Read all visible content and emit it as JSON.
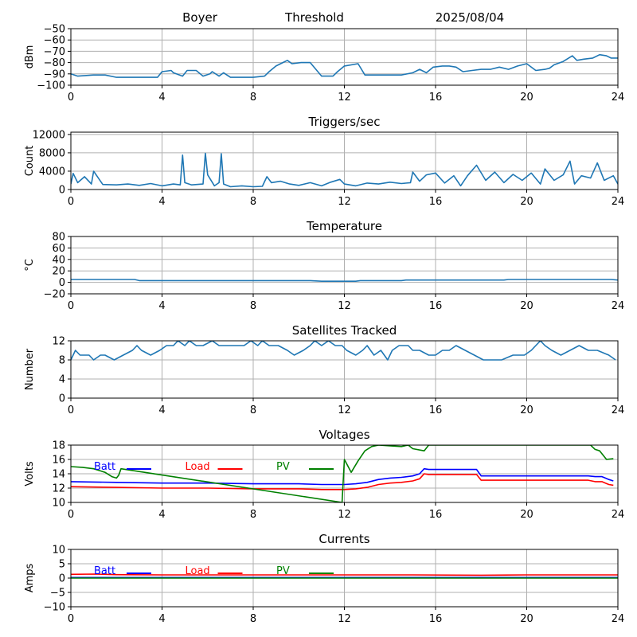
{
  "header": {
    "station": "Boyer",
    "mode": "Threshold",
    "date": "2025/08/04"
  },
  "chart_data": [
    {
      "type": "line",
      "title": "",
      "ylabel": "dBm",
      "xlim": [
        0,
        24
      ],
      "ylim": [
        -100,
        -50
      ],
      "xticks": [
        0,
        4,
        8,
        12,
        16,
        20,
        24
      ],
      "yticks": [
        -100,
        -90,
        -80,
        -70,
        -60,
        -50
      ],
      "grid": true,
      "series": [
        {
          "color": "#1f77b4",
          "x": [
            0,
            0.3,
            1,
            1.5,
            2,
            3,
            3.8,
            4,
            4.4,
            4.5,
            4.9,
            5.1,
            5.5,
            5.8,
            6.1,
            6.2,
            6.5,
            6.7,
            7,
            8,
            8.5,
            8.7,
            9,
            9.3,
            9.5,
            9.7,
            10.1,
            10.5,
            11,
            11.5,
            11.7,
            12,
            12.6,
            12.9,
            13.5,
            14.5,
            15,
            15.3,
            15.6,
            15.9,
            16.3,
            16.6,
            16.9,
            17.2,
            17.6,
            18,
            18.4,
            18.8,
            19.2,
            19.6,
            20,
            20.4,
            20.8,
            21,
            21.2,
            21.6,
            22,
            22.2,
            22.5,
            22.9,
            23.2,
            23.5,
            23.7,
            24
          ],
          "y": [
            -90,
            -92,
            -91,
            -91,
            -93,
            -93,
            -93,
            -88,
            -87,
            -89,
            -92,
            -87,
            -87,
            -92,
            -90,
            -88,
            -92,
            -89,
            -93,
            -93,
            -92,
            -88,
            -83,
            -80,
            -78,
            -81,
            -80,
            -80,
            -92,
            -92,
            -88,
            -83,
            -81,
            -91,
            -91,
            -91,
            -89,
            -86,
            -89,
            -84,
            -83,
            -83,
            -84,
            -88,
            -87,
            -86,
            -86,
            -84,
            -86,
            -83,
            -81,
            -87,
            -86,
            -85,
            -82,
            -79,
            -74,
            -78,
            -77,
            -76,
            -73,
            -74,
            -76,
            -76
          ]
        }
      ]
    },
    {
      "type": "line",
      "title": "Triggers/sec",
      "ylabel": "Count",
      "xlim": [
        0,
        24
      ],
      "ylim": [
        0,
        12500
      ],
      "xticks": [
        0,
        4,
        8,
        12,
        16,
        20,
        24
      ],
      "yticks": [
        0,
        4000,
        8000,
        12000
      ],
      "grid": true,
      "series": [
        {
          "color": "#1f77b4",
          "x": [
            0,
            0.1,
            0.3,
            0.6,
            0.9,
            1,
            1.4,
            2,
            2.5,
            3,
            3.5,
            4,
            4.5,
            4.8,
            4.9,
            5,
            5.3,
            5.8,
            5.9,
            6,
            6.3,
            6.5,
            6.6,
            6.7,
            7,
            7.5,
            8,
            8.4,
            8.6,
            8.8,
            9.2,
            9.6,
            10,
            10.5,
            11,
            11.4,
            11.8,
            12,
            12.5,
            13,
            13.5,
            14,
            14.5,
            14.9,
            15,
            15.3,
            15.6,
            16,
            16.4,
            16.8,
            17.1,
            17.4,
            17.8,
            18.2,
            18.6,
            19,
            19.4,
            19.8,
            20.2,
            20.6,
            20.8,
            21.2,
            21.6,
            21.9,
            22.1,
            22.4,
            22.8,
            23.1,
            23.4,
            23.8,
            24
          ],
          "y": [
            1200,
            3500,
            1500,
            2800,
            1200,
            4000,
            1100,
            1000,
            1200,
            900,
            1300,
            800,
            1200,
            1000,
            7500,
            1500,
            1000,
            1200,
            7900,
            3200,
            800,
            1500,
            7800,
            1200,
            600,
            800,
            600,
            700,
            2800,
            1500,
            1800,
            1200,
            900,
            1500,
            800,
            1600,
            2200,
            1200,
            800,
            1400,
            1200,
            1600,
            1300,
            1500,
            3800,
            1800,
            3200,
            3600,
            1400,
            3000,
            800,
            3000,
            5300,
            2000,
            3800,
            1500,
            3300,
            2000,
            3600,
            1200,
            4500,
            2000,
            3200,
            6200,
            1200,
            3000,
            2500,
            5800,
            2000,
            3000,
            1200
          ]
        }
      ]
    },
    {
      "type": "line",
      "title": "Temperature",
      "ylabel": "°C",
      "xlim": [
        0,
        24
      ],
      "ylim": [
        -20,
        80
      ],
      "xticks": [
        0,
        4,
        8,
        12,
        16,
        20,
        24
      ],
      "yticks": [
        -20,
        0,
        20,
        40,
        60,
        80
      ],
      "grid": true,
      "series": [
        {
          "color": "#1f77b4",
          "x": [
            0,
            2.8,
            3,
            10.5,
            11,
            12.5,
            12.7,
            14.5,
            14.7,
            19,
            19.2,
            23.7,
            24
          ],
          "y": [
            5,
            5,
            3,
            3,
            2,
            2,
            3,
            3,
            4,
            4,
            5,
            5,
            4
          ]
        }
      ]
    },
    {
      "type": "line",
      "title": "Satellites Tracked",
      "ylabel": "Number",
      "xlim": [
        0,
        24
      ],
      "ylim": [
        0,
        12
      ],
      "xticks": [
        0,
        4,
        8,
        12,
        16,
        20,
        24
      ],
      "yticks": [
        0,
        4,
        8,
        12
      ],
      "grid": true,
      "series": [
        {
          "color": "#1f77b4",
          "x": [
            0,
            0.2,
            0.4,
            0.8,
            1,
            1.3,
            1.5,
            1.9,
            2.3,
            2.7,
            2.9,
            3.1,
            3.5,
            3.9,
            4.2,
            4.5,
            4.7,
            5,
            5.2,
            5.5,
            5.8,
            6.2,
            6.5,
            6.8,
            7.2,
            7.6,
            7.9,
            8.2,
            8.4,
            8.7,
            9.1,
            9.5,
            9.8,
            10.2,
            10.5,
            10.7,
            11,
            11.3,
            11.6,
            11.9,
            12.1,
            12.5,
            12.8,
            13,
            13.3,
            13.6,
            13.9,
            14.1,
            14.4,
            14.8,
            15,
            15.3,
            15.7,
            16,
            16.3,
            16.6,
            16.9,
            17.3,
            17.7,
            18.1,
            18.5,
            18.9,
            19.4,
            19.9,
            20.2,
            20.4,
            20.6,
            20.8,
            21.1,
            21.5,
            21.9,
            22.3,
            22.7,
            23.1,
            23.6,
            23.9
          ],
          "y": [
            8,
            10,
            9,
            9,
            8,
            9,
            9,
            8,
            9,
            10,
            11,
            10,
            9,
            10,
            11,
            11,
            12,
            11,
            12,
            11,
            11,
            12,
            11,
            11,
            11,
            11,
            12,
            11,
            12,
            11,
            11,
            10,
            9,
            10,
            11,
            12,
            11,
            12,
            11,
            11,
            10,
            9,
            10,
            11,
            9,
            10,
            8,
            10,
            11,
            11,
            10,
            10,
            9,
            9,
            10,
            10,
            11,
            10,
            9,
            8,
            8,
            8,
            9,
            9,
            10,
            11,
            12,
            11,
            10,
            9,
            10,
            11,
            10,
            10,
            9,
            8
          ]
        }
      ]
    },
    {
      "type": "line",
      "title": "Voltages",
      "ylabel": "Volts",
      "xlim": [
        0,
        24
      ],
      "ylim": [
        10,
        18
      ],
      "xticks": [
        0,
        4,
        8,
        12,
        16,
        20,
        24
      ],
      "yticks": [
        10,
        12,
        14,
        16,
        18
      ],
      "grid": true,
      "legend_position": "top-left",
      "series": [
        {
          "name": "Batt",
          "color": "#0000ff",
          "x": [
            0,
            2,
            4,
            6,
            8,
            10,
            11,
            12,
            12.5,
            13,
            13.5,
            14,
            14.5,
            15,
            15.3,
            15.5,
            15.7,
            16,
            17,
            17.8,
            18,
            19,
            20,
            21,
            22,
            22.7,
            23,
            23.3,
            23.6,
            23.8
          ],
          "y": [
            12.9,
            12.8,
            12.7,
            12.7,
            12.6,
            12.6,
            12.5,
            12.5,
            12.6,
            12.8,
            13.2,
            13.4,
            13.5,
            13.7,
            14,
            14.7,
            14.6,
            14.6,
            14.6,
            14.6,
            13.7,
            13.7,
            13.7,
            13.7,
            13.7,
            13.7,
            13.6,
            13.6,
            13.2,
            13
          ]
        },
        {
          "name": "Load",
          "color": "#ff0000",
          "x": [
            0,
            2,
            4,
            6,
            8,
            10,
            11,
            12,
            12.5,
            13,
            13.5,
            14,
            14.5,
            15,
            15.3,
            15.5,
            15.7,
            16,
            17,
            17.8,
            18,
            19,
            20,
            21,
            22,
            22.7,
            23,
            23.3,
            23.6,
            23.8
          ],
          "y": [
            12.2,
            12.1,
            12,
            12,
            11.9,
            11.9,
            11.8,
            11.8,
            11.9,
            12.1,
            12.5,
            12.7,
            12.8,
            13,
            13.3,
            14,
            13.9,
            13.9,
            13.9,
            13.9,
            13.1,
            13.1,
            13.1,
            13.1,
            13.1,
            13.1,
            12.9,
            12.9,
            12.5,
            12.4
          ]
        },
        {
          "name": "PV",
          "color": "#008000",
          "x": [
            0,
            0.5,
            1,
            1.5,
            1.8,
            2,
            2.1,
            2.2,
            11.9,
            12,
            12.3,
            12.6,
            12.9,
            13.2,
            13.5,
            14,
            14.5,
            14.8,
            15,
            15.5,
            15.7,
            22.8,
            23,
            23.2,
            23.5,
            23.8
          ],
          "y": [
            15,
            14.9,
            14.7,
            14.2,
            13.6,
            13.4,
            13.8,
            14.7,
            10,
            16,
            14.2,
            15.8,
            17.2,
            17.8,
            18,
            17.9,
            17.8,
            18,
            17.5,
            17.2,
            18,
            18,
            17.4,
            17.2,
            16,
            16.1
          ]
        }
      ]
    },
    {
      "type": "line",
      "title": "Currents",
      "ylabel": "Amps",
      "xlim": [
        0,
        24
      ],
      "ylim": [
        -10,
        10
      ],
      "xticks": [
        0,
        4,
        8,
        12,
        16,
        20,
        24
      ],
      "yticks": [
        -10,
        -5,
        0,
        5,
        10
      ],
      "grid": true,
      "legend_position": "top-left",
      "series": [
        {
          "name": "Batt",
          "color": "#0000ff",
          "x": [
            0,
            24
          ],
          "y": [
            0.2,
            0.2
          ]
        },
        {
          "name": "Load",
          "color": "#ff0000",
          "x": [
            0,
            1,
            2,
            4,
            8,
            12,
            15,
            18,
            20,
            24
          ],
          "y": [
            1.3,
            1.4,
            1.2,
            1.1,
            1.1,
            1.1,
            1.1,
            1.0,
            1.1,
            1.1
          ]
        },
        {
          "name": "PV",
          "color": "#008000",
          "x": [
            0,
            24
          ],
          "y": [
            0,
            0
          ]
        }
      ]
    }
  ]
}
